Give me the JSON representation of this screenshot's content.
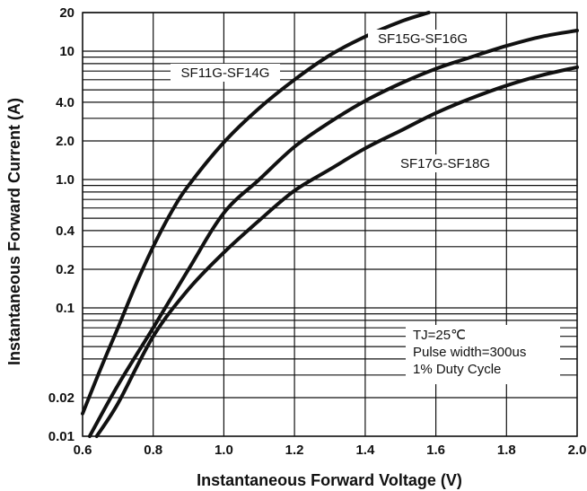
{
  "chart_data": {
    "type": "line",
    "xlabel": "Instantaneous Forward Voltage (V)",
    "ylabel": "Instantaneous Forward Current (A)",
    "xlim": [
      0.6,
      2.0
    ],
    "ylim": [
      0.01,
      20
    ],
    "yscale": "log",
    "grid": true,
    "x_ticks": [
      0.6,
      0.8,
      1.0,
      1.2,
      1.4,
      1.6,
      1.8,
      2.0
    ],
    "x_tick_labels": [
      "0.6",
      "0.8",
      "1.0",
      "1.2",
      "1.4",
      "1.6",
      "1.8",
      "2.0"
    ],
    "y_ticks": [
      0.01,
      0.02,
      0.1,
      0.2,
      0.4,
      1.0,
      2.0,
      4.0,
      10,
      20
    ],
    "y_tick_labels": [
      "0.01",
      "0.02",
      "0.1",
      "0.2",
      "0.4",
      "1.0",
      "2.0",
      "4.0",
      "10",
      "20"
    ],
    "series": [
      {
        "name": "SF11G-SF14G",
        "x": [
          0.6,
          0.65,
          0.7,
          0.75,
          0.8,
          0.85,
          0.9,
          1.0,
          1.1,
          1.2,
          1.3,
          1.4,
          1.5,
          1.58
        ],
        "y": [
          0.015,
          0.033,
          0.07,
          0.15,
          0.3,
          0.55,
          0.9,
          1.95,
          3.6,
          6.0,
          9.3,
          13.0,
          17.0,
          20.0
        ]
      },
      {
        "name": "SF15G-SF16G",
        "x": [
          0.62,
          0.7,
          0.8,
          0.9,
          1.0,
          1.1,
          1.2,
          1.3,
          1.4,
          1.5,
          1.6,
          1.7,
          1.8,
          1.9,
          2.0
        ],
        "y": [
          0.01,
          0.025,
          0.07,
          0.2,
          0.55,
          1.0,
          1.8,
          2.8,
          4.1,
          5.6,
          7.3,
          9.0,
          11.0,
          13.0,
          14.5
        ]
      },
      {
        "name": "SF17G-SF18G",
        "x": [
          0.64,
          0.7,
          0.8,
          0.9,
          1.0,
          1.1,
          1.2,
          1.3,
          1.4,
          1.5,
          1.6,
          1.7,
          1.8,
          1.9,
          2.0
        ],
        "y": [
          0.01,
          0.018,
          0.06,
          0.14,
          0.27,
          0.48,
          0.82,
          1.2,
          1.75,
          2.4,
          3.3,
          4.3,
          5.4,
          6.5,
          7.5
        ]
      }
    ],
    "annotations": [
      "TJ=25℃",
      "Pulse width=300us",
      "1% Duty Cycle"
    ]
  }
}
